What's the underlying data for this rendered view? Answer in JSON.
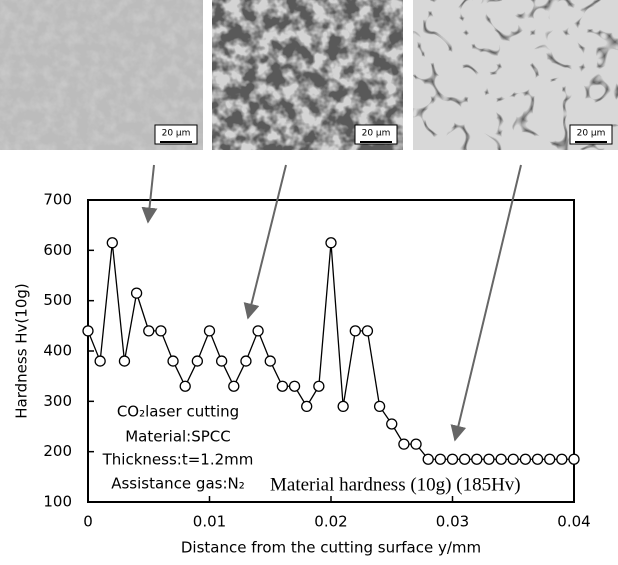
{
  "chart_data": {
    "type": "line",
    "ylabel": "Hardness Hv(10g)",
    "xlabel": "Distance from the cutting surface y/mm",
    "x": [
      0,
      0.001,
      0.002,
      0.003,
      0.004,
      0.005,
      0.006,
      0.007,
      0.008,
      0.009,
      0.01,
      0.011,
      0.012,
      0.013,
      0.014,
      0.015,
      0.016,
      0.017,
      0.018,
      0.019,
      0.02,
      0.021,
      0.022,
      0.023,
      0.024,
      0.025,
      0.026,
      0.027,
      0.028,
      0.029,
      0.03,
      0.031,
      0.032,
      0.033,
      0.034,
      0.035,
      0.036,
      0.037,
      0.038,
      0.039,
      0.04
    ],
    "series": [
      {
        "color": "#000000",
        "values": [
          440,
          380,
          615,
          380,
          515,
          440,
          440,
          380,
          330,
          380,
          440,
          380,
          330,
          380,
          440,
          380,
          330,
          330,
          290,
          330,
          615,
          290,
          440,
          440,
          290,
          255,
          215,
          215,
          185,
          185,
          185,
          185,
          185,
          185,
          185,
          185,
          185,
          185,
          185,
          185,
          185
        ]
      }
    ],
    "xlim": [
      0,
      0.04
    ],
    "xticks": [
      0,
      0.01,
      0.02,
      0.03,
      0.04
    ],
    "ylim": [
      100,
      700
    ],
    "yticks": [
      100,
      200,
      300,
      400,
      500,
      600,
      700
    ],
    "annotations": [
      "CO₂laser cutting",
      "Material:SPCC",
      "Thickness:t=1.2mm",
      "Assistance gas:N₂"
    ],
    "hardness_note": "Material hardness (10g) (185Hv)",
    "micrograph_scale_labels": [
      "20 μm",
      "20 μm",
      "20 μm"
    ]
  }
}
